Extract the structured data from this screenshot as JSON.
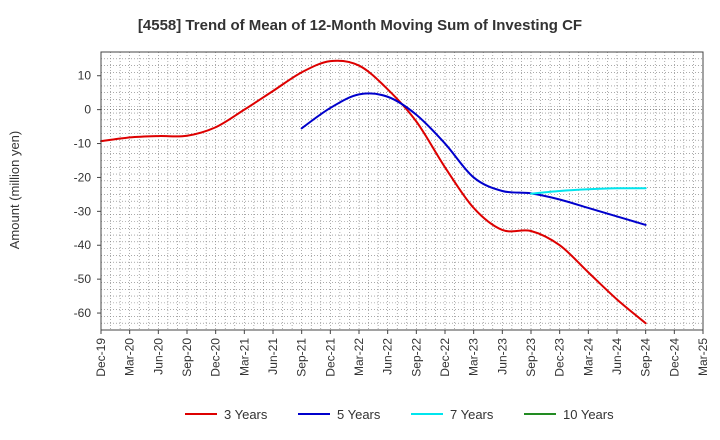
{
  "chart_data": {
    "type": "line",
    "title": "[4558]  Trend of Mean of 12-Month Moving Sum of Investing CF",
    "xlabel": "",
    "ylabel": "Amount (million yen)",
    "ylim": [
      -65,
      17
    ],
    "yticks": [
      10,
      0,
      -10,
      -20,
      -30,
      -40,
      -50,
      -60
    ],
    "categories": [
      "Dec-19",
      "Mar-20",
      "Jun-20",
      "Sep-20",
      "Dec-20",
      "Mar-21",
      "Jun-21",
      "Sep-21",
      "Dec-21",
      "Mar-22",
      "Jun-22",
      "Sep-22",
      "Dec-22",
      "Mar-23",
      "Jun-23",
      "Sep-23",
      "Dec-23",
      "Mar-24",
      "Jun-24",
      "Sep-24",
      "Dec-24",
      "Mar-25"
    ],
    "grid": true,
    "legend_position": "bottom",
    "series": [
      {
        "name": "3 Years",
        "color": "#dd0000",
        "values": [
          -9.3,
          -8.2,
          -7.8,
          -7.7,
          -5.2,
          0.0,
          5.5,
          11.0,
          14.3,
          13.0,
          6.0,
          -3.5,
          -17.0,
          -29.0,
          -35.5,
          -35.8,
          -40.0,
          -48.0,
          -56.0,
          -63.0,
          null,
          null
        ]
      },
      {
        "name": "5 Years",
        "color": "#0000cc",
        "values": [
          null,
          null,
          null,
          null,
          null,
          null,
          null,
          -5.5,
          0.5,
          4.5,
          3.8,
          -1.5,
          -10.0,
          -20.0,
          -24.0,
          -24.7,
          -26.5,
          -29.0,
          -31.5,
          -34.0,
          null,
          null
        ]
      },
      {
        "name": "7 Years",
        "color": "#00e5ee",
        "values": [
          null,
          null,
          null,
          null,
          null,
          null,
          null,
          null,
          null,
          null,
          null,
          null,
          null,
          null,
          null,
          -24.8,
          -24.0,
          -23.5,
          -23.2,
          -23.2,
          null,
          null
        ]
      },
      {
        "name": "10 Years",
        "color": "#228b22",
        "values": [
          null,
          null,
          null,
          null,
          null,
          null,
          null,
          null,
          null,
          null,
          null,
          null,
          null,
          null,
          null,
          null,
          null,
          null,
          null,
          null,
          null,
          null
        ]
      }
    ]
  }
}
